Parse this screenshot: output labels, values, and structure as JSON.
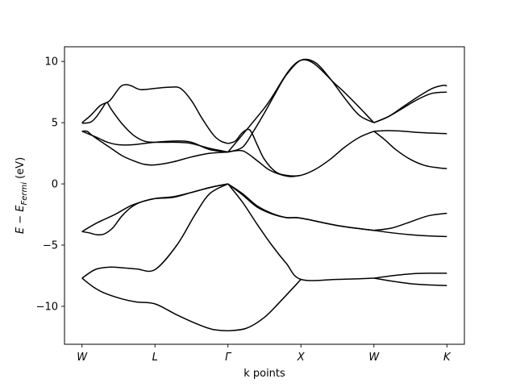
{
  "chart_data": {
    "type": "line",
    "title": "",
    "xlabel": "k points",
    "ylabel": "E - E_Fermi (eV)",
    "ylabel_parts": {
      "e": "E",
      "minus": " − ",
      "ef": "E",
      "sub": "Fermi",
      "unit": " (eV)"
    },
    "ylim": [
      -13.1,
      11.2
    ],
    "yticks": [
      {
        "value": 10,
        "label": "10"
      },
      {
        "value": 5,
        "label": "5"
      },
      {
        "value": 0,
        "label": "0"
      },
      {
        "value": -5,
        "label": "−5"
      },
      {
        "value": -10,
        "label": "−10"
      }
    ],
    "xlim": [
      -0.24,
      5.24
    ],
    "kpoints": [
      {
        "x": 0,
        "label": "W"
      },
      {
        "x": 1,
        "label": "L"
      },
      {
        "x": 2,
        "label": "Γ"
      },
      {
        "x": 3,
        "label": "X"
      },
      {
        "x": 4,
        "label": "W"
      },
      {
        "x": 5,
        "label": "K"
      }
    ],
    "grid": false,
    "line_color": "#000000",
    "bands": [
      {
        "x": [
          0,
          0.18,
          0.37,
          0.55,
          0.75,
          1,
          1.3,
          1.55,
          1.75,
          2
        ],
        "y": [
          -7.7,
          -7.0,
          -6.8,
          -6.85,
          -6.95,
          -7.0,
          -5.0,
          -2.5,
          -0.8,
          0.0
        ]
      },
      {
        "x": [
          0,
          0.15,
          0.3,
          0.55,
          0.75,
          1,
          1.3,
          1.6,
          1.8,
          2
        ],
        "y": [
          -7.7,
          -8.4,
          -8.9,
          -9.4,
          -9.65,
          -9.8,
          -10.7,
          -11.5,
          -11.9,
          -12.0
        ]
      },
      {
        "x": [
          0,
          0.1,
          0.2,
          0.3,
          0.42,
          0.55,
          0.7,
          0.85,
          1,
          1.25,
          1.5,
          1.75,
          2
        ],
        "y": [
          -3.9,
          -4.0,
          -4.15,
          -4.1,
          -3.6,
          -2.6,
          -1.8,
          -1.4,
          -1.2,
          -1.1,
          -0.7,
          -0.3,
          0.0
        ]
      },
      {
        "x": [
          0,
          0.2,
          0.45,
          0.7,
          1,
          1.25,
          1.5,
          1.75,
          2
        ],
        "y": [
          -3.9,
          -3.2,
          -2.5,
          -1.7,
          -1.2,
          -1.05,
          -0.7,
          -0.3,
          0.0
        ]
      },
      {
        "x": [
          0,
          0.07,
          0.12,
          0.2,
          0.3,
          0.4,
          0.55,
          0.7,
          0.85,
          1,
          1.25,
          1.5,
          1.75,
          2
        ],
        "y": [
          4.3,
          4.3,
          4.05,
          3.7,
          3.3,
          2.9,
          2.3,
          1.9,
          1.6,
          1.55,
          1.8,
          2.2,
          2.5,
          2.6
        ]
      },
      {
        "x": [
          0,
          0.2,
          0.35,
          0.5,
          0.7,
          1,
          1.3,
          1.5,
          1.75,
          2
        ],
        "y": [
          4.3,
          3.8,
          3.4,
          3.2,
          3.2,
          3.4,
          3.5,
          3.4,
          2.8,
          2.6
        ]
      },
      {
        "x": [
          0,
          0.12,
          0.2,
          0.28,
          0.34,
          0.4,
          0.55,
          0.7,
          0.85,
          1,
          1.3,
          1.5,
          1.75,
          2
        ],
        "y": [
          4.95,
          5.05,
          5.5,
          6.2,
          6.65,
          6.1,
          4.9,
          4.0,
          3.5,
          3.4,
          3.4,
          3.3,
          2.9,
          2.6
        ]
      },
      {
        "x": [
          0,
          0.12,
          0.25,
          0.38,
          0.52,
          0.6,
          0.68,
          0.8,
          1,
          1.2,
          1.35,
          1.5,
          1.65,
          1.8,
          1.9,
          2
        ],
        "y": [
          5.0,
          5.6,
          6.4,
          6.8,
          7.9,
          8.1,
          8.0,
          7.7,
          7.8,
          7.9,
          7.8,
          6.8,
          5.3,
          4.0,
          3.5,
          3.3
        ]
      },
      {
        "x": [
          2,
          2.1,
          2.2,
          2.3,
          2.4,
          2.5,
          2.65,
          2.8,
          3,
          3.2,
          3.4,
          3.6,
          3.8,
          4
        ],
        "y": [
          3.3,
          3.5,
          4.2,
          4.4,
          3.2,
          2.0,
          1.0,
          0.7,
          0.7,
          1.2,
          2.0,
          3.0,
          3.8,
          4.3
        ]
      },
      {
        "x": [
          2,
          2.2,
          2.35,
          2.5,
          2.65,
          2.8,
          3,
          3.2,
          3.4,
          3.6,
          3.8,
          4
        ],
        "y": [
          2.6,
          3.0,
          4.3,
          5.8,
          7.4,
          8.9,
          10.1,
          9.9,
          8.6,
          7.0,
          5.6,
          5.0
        ]
      },
      {
        "x": [
          2,
          2.2,
          2.4,
          2.55,
          2.7,
          2.85,
          3
        ],
        "y": [
          2.6,
          2.7,
          1.9,
          1.2,
          0.8,
          0.6,
          0.7
        ]
      },
      {
        "x": [
          2,
          2.5,
          3,
          3.5,
          4
        ],
        "y": [
          2.6,
          6.2,
          10.1,
          8.0,
          5.0
        ]
      },
      {
        "x": [
          2,
          2.2,
          2.4,
          2.6,
          2.8,
          3,
          3.5,
          4
        ],
        "y": [
          0.0,
          -0.8,
          -1.8,
          -2.4,
          -2.75,
          -2.8,
          -3.4,
          -3.8
        ]
      },
      {
        "x": [
          2,
          2.2,
          2.4,
          2.6,
          2.8,
          3,
          3.5,
          4
        ],
        "y": [
          0.0,
          -0.9,
          -1.9,
          -2.45,
          -2.75,
          -2.8,
          -3.4,
          -3.8
        ]
      },
      {
        "x": [
          2,
          2.2,
          2.4,
          2.6,
          2.8,
          3,
          3.5,
          4
        ],
        "y": [
          0.0,
          -1.5,
          -3.3,
          -5.0,
          -6.5,
          -7.8,
          -7.8,
          -7.7
        ]
      },
      {
        "x": [
          2,
          2.25,
          2.5,
          2.75,
          3
        ],
        "y": [
          -12.0,
          -11.8,
          -10.9,
          -9.4,
          -7.8
        ]
      },
      {
        "x": [
          4,
          4.2,
          4.4,
          4.6,
          4.8,
          5
        ],
        "y": [
          5.0,
          5.5,
          6.2,
          6.9,
          7.4,
          7.5
        ]
      },
      {
        "x": [
          4,
          4.2,
          4.4,
          4.6,
          4.8,
          4.95,
          5
        ],
        "y": [
          5.0,
          5.5,
          6.3,
          7.1,
          7.8,
          8.05,
          8.0
        ]
      },
      {
        "x": [
          4,
          4.2,
          4.4,
          4.6,
          4.8,
          5
        ],
        "y": [
          4.3,
          4.35,
          4.3,
          4.2,
          4.15,
          4.1
        ]
      },
      {
        "x": [
          4,
          4.15,
          4.3,
          4.5,
          4.7,
          4.9,
          5
        ],
        "y": [
          4.3,
          3.6,
          2.8,
          2.0,
          1.5,
          1.3,
          1.25
        ]
      },
      {
        "x": [
          4,
          4.25,
          4.5,
          4.75,
          5
        ],
        "y": [
          -3.8,
          -3.6,
          -3.1,
          -2.6,
          -2.4
        ]
      },
      {
        "x": [
          4,
          4.25,
          4.5,
          4.75,
          5
        ],
        "y": [
          -3.8,
          -4.0,
          -4.15,
          -4.25,
          -4.3
        ]
      },
      {
        "x": [
          4,
          4.25,
          4.5,
          4.75,
          5
        ],
        "y": [
          -7.7,
          -7.5,
          -7.35,
          -7.3,
          -7.3
        ]
      },
      {
        "x": [
          4,
          4.25,
          4.5,
          4.75,
          5
        ],
        "y": [
          -7.7,
          -7.95,
          -8.15,
          -8.25,
          -8.3
        ]
      }
    ]
  }
}
